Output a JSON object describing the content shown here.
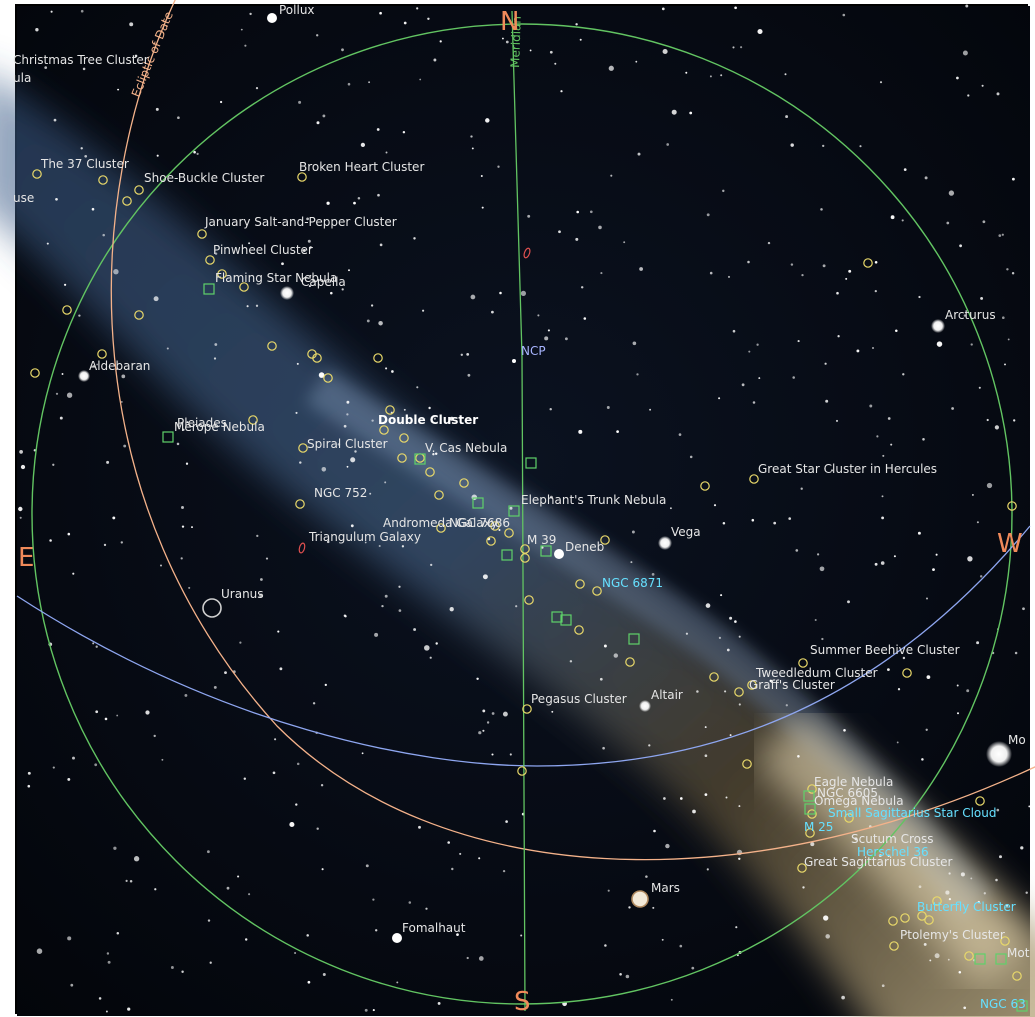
{
  "colors": {
    "label": "#e6e6e6",
    "label_blue": "#a8b4ff",
    "label_cyan": "#66e0ff",
    "cardinal": "#f08a5a",
    "horizon": "#62c462",
    "ecliptic": "#f4b28a",
    "equator": "#8ea6f0",
    "meridian": "#62c462",
    "cluster_marker": "#e8d86a",
    "nebula_marker": "#5fd16a",
    "galaxy_marker": "#e05050"
  },
  "lines": {
    "ecliptic_label": "Ecliptic of Date",
    "meridian_label": "Meridian"
  },
  "cardinals": {
    "north": "N",
    "south": "S",
    "east": "E",
    "west": "W"
  },
  "bright_stars": [
    {
      "name": "Pollux"
    },
    {
      "name": "Capella"
    },
    {
      "name": "Aldebaran"
    },
    {
      "name": "Arcturus"
    },
    {
      "name": "Vega"
    },
    {
      "name": "Deneb"
    },
    {
      "name": "Altair"
    },
    {
      "name": "Fomalhaut"
    }
  ],
  "planets": [
    {
      "name": "Uranus",
      "icon": "planet-ring-icon"
    },
    {
      "name": "Mars",
      "icon": "planet-disc-icon"
    },
    {
      "name": "Mo",
      "icon": "moon-disc-icon"
    }
  ],
  "poles": {
    "ncp": "NCP"
  },
  "clusters": [
    {
      "name": "Christmas Tree Cluster"
    },
    {
      "name": "ula"
    },
    {
      "name": "The 37 Cluster"
    },
    {
      "name": "use"
    },
    {
      "name": "Shoe-Buckle Cluster"
    },
    {
      "name": "Broken Heart Cluster"
    },
    {
      "name": "January Salt-and-Pepper Cluster"
    },
    {
      "name": "Pinwheel Cluster"
    },
    {
      "name": "Flaming Star Nebula"
    },
    {
      "name": "Double Cluster"
    },
    {
      "name": "Pleiades"
    },
    {
      "name": "Merope Nebula"
    },
    {
      "name": "Spiral Cluster"
    },
    {
      "name": "V. Cas Nebula"
    },
    {
      "name": "NGC 752"
    },
    {
      "name": "Elephant's Trunk Nebula"
    },
    {
      "name": "Andromeda Galaxy"
    },
    {
      "name": "NGC 7686"
    },
    {
      "name": "Triangulum Galaxy"
    },
    {
      "name": "M 39"
    },
    {
      "name": "NGC 6871"
    },
    {
      "name": "Great Star Cluster in Hercules"
    },
    {
      "name": "Summer Beehive Cluster"
    },
    {
      "name": "Tweedledum Cluster"
    },
    {
      "name": "Graff's Cluster"
    },
    {
      "name": "Pegasus Cluster"
    },
    {
      "name": "Eagle Nebula"
    },
    {
      "name": "NGC 6605"
    },
    {
      "name": "Omega Nebula"
    },
    {
      "name": "Small Sagittarius Star Cloud"
    },
    {
      "name": "M 25"
    },
    {
      "name": "Scutum Cross"
    },
    {
      "name": "Herschel 36"
    },
    {
      "name": "Great Sagittarius Cluster"
    },
    {
      "name": "Butterfly Cluster"
    },
    {
      "name": "Ptolemy's Cluster"
    },
    {
      "name": "Mot"
    },
    {
      "name": "NGC 63"
    }
  ]
}
